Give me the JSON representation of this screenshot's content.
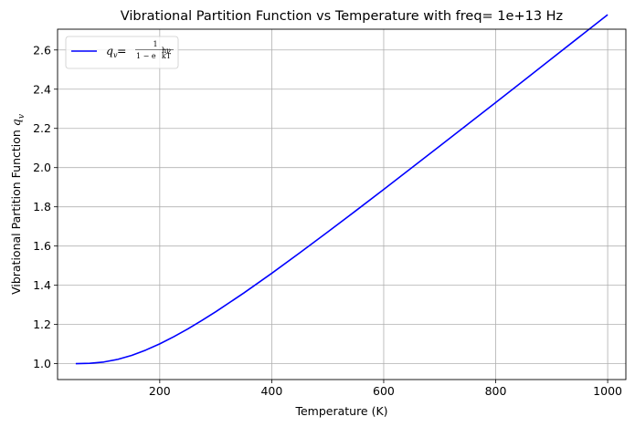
{
  "chart_data": {
    "type": "line",
    "title": "Vibrational Partition Function vs Temperature with freq= 1e+13 Hz",
    "xlabel": "Temperature (K)",
    "ylabel_main": "Vibrational Partition Function ",
    "ylabel_sym": "q",
    "ylabel_sub": "v",
    "xlim": [
      17.5,
      1032.5
    ],
    "ylim": [
      0.919,
      2.706
    ],
    "xticks": [
      200,
      400,
      600,
      800,
      1000
    ],
    "yticks": [
      1.0,
      1.2,
      1.4,
      1.6,
      1.8,
      2.0,
      2.2,
      2.4,
      2.6
    ],
    "xtick_labels": [
      "200",
      "400",
      "600",
      "800",
      "1000"
    ],
    "ytick_labels": [
      "1.0",
      "1.2",
      "1.4",
      "1.6",
      "1.8",
      "2.0",
      "2.2",
      "2.4",
      "2.6"
    ],
    "grid": true,
    "legend_position": "upper-left",
    "legend": {
      "sym": "q",
      "sub": "v",
      "eq": " = ",
      "numerator": "1",
      "denominator": "1 − e",
      "exponent_num": "hν",
      "exponent_den": "kT"
    },
    "x": [
      50,
      75,
      100,
      125,
      150,
      175,
      200,
      225,
      250,
      275,
      300,
      350,
      400,
      450,
      500,
      550,
      600,
      650,
      700,
      750,
      800,
      850,
      900,
      950,
      1000
    ],
    "series": [
      {
        "values": [
          1.0001,
          1.0017,
          1.0085,
          1.022,
          1.0425,
          1.0693,
          1.1012,
          1.1375,
          1.1772,
          1.2199,
          1.2648,
          1.3601,
          1.4608,
          1.5651,
          1.6716,
          1.7797,
          1.8889,
          1.999,
          2.1096,
          2.2207,
          2.3321,
          2.4439,
          2.5558,
          2.6679,
          2.7801
        ],
        "color": "#0000ff"
      }
    ],
    "colors": {
      "line": "#0000ff",
      "grid": "#b0b0b0",
      "axes": "#000000"
    }
  }
}
